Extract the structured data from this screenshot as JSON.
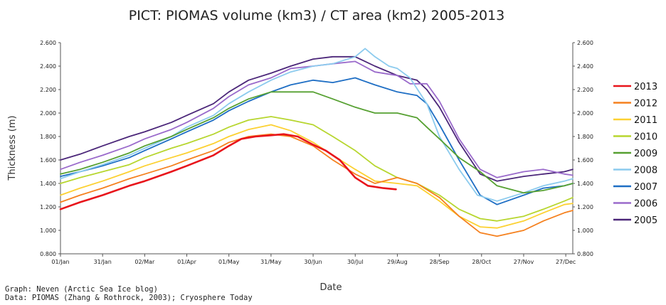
{
  "chart_data": {
    "type": "line",
    "title": "PICT: PIOMAS volume (km3) / CT area (km2) 2005-2013",
    "xlabel": "Date",
    "ylabel": "Thickness (m)",
    "ylim": [
      0.8,
      2.6
    ],
    "y_ticks": [
      "0.800",
      "1.000",
      "1.200",
      "1.400",
      "1.600",
      "1.800",
      "2.000",
      "2.200",
      "2.400",
      "2.600"
    ],
    "x_tick_labels": [
      "01/Jan",
      "31/Jan",
      "02/Mar",
      "01/Apr",
      "01/May",
      "31/May",
      "30/Jun",
      "30/Jul",
      "29/Aug",
      "28/Sep",
      "28/Oct",
      "27/Nov",
      "27/Dec"
    ],
    "x_ticks_day": [
      1,
      31,
      61,
      91,
      121,
      151,
      181,
      211,
      241,
      271,
      301,
      331,
      361
    ],
    "xlim": [
      1,
      366
    ],
    "grid": false,
    "legend_position": "right",
    "credits": [
      "Graph: Neven (Arctic Sea Ice blog)",
      "Data: PIOMAS (Zhang & Rothrock, 2003); Cryosphere Today"
    ],
    "series": [
      {
        "name": "2013",
        "color": "#e8141b",
        "width": 2.6,
        "x": [
          1,
          15,
          31,
          50,
          61,
          80,
          91,
          110,
          121,
          130,
          140,
          151,
          160,
          170,
          181,
          190,
          200,
          211,
          220,
          231,
          240
        ],
        "y": [
          1.18,
          1.24,
          1.3,
          1.38,
          1.42,
          1.5,
          1.55,
          1.64,
          1.72,
          1.78,
          1.8,
          1.81,
          1.82,
          1.8,
          1.73,
          1.68,
          1.6,
          1.45,
          1.38,
          1.36,
          1.35
        ]
      },
      {
        "name": "2012",
        "color": "#f5811f",
        "width": 1.8,
        "x": [
          1,
          15,
          31,
          50,
          61,
          80,
          91,
          110,
          121,
          135,
          151,
          165,
          181,
          195,
          211,
          225,
          241,
          255,
          271,
          285,
          300,
          312,
          331,
          345,
          360,
          366
        ],
        "y": [
          1.24,
          1.3,
          1.36,
          1.44,
          1.48,
          1.55,
          1.6,
          1.68,
          1.75,
          1.8,
          1.82,
          1.8,
          1.72,
          1.6,
          1.48,
          1.4,
          1.45,
          1.4,
          1.28,
          1.12,
          0.98,
          0.95,
          1.0,
          1.08,
          1.15,
          1.17
        ]
      },
      {
        "name": "2011",
        "color": "#fcd132",
        "width": 1.8,
        "x": [
          1,
          15,
          31,
          50,
          61,
          80,
          91,
          110,
          121,
          135,
          151,
          165,
          181,
          195,
          211,
          225,
          241,
          255,
          271,
          285,
          300,
          312,
          331,
          345,
          360,
          366
        ],
        "y": [
          1.3,
          1.36,
          1.42,
          1.5,
          1.55,
          1.62,
          1.66,
          1.74,
          1.8,
          1.86,
          1.9,
          1.85,
          1.75,
          1.64,
          1.52,
          1.42,
          1.4,
          1.38,
          1.25,
          1.12,
          1.03,
          1.02,
          1.08,
          1.15,
          1.22,
          1.23
        ]
      },
      {
        "name": "2010",
        "color": "#b7d62f",
        "width": 1.8,
        "x": [
          1,
          15,
          31,
          50,
          61,
          80,
          91,
          110,
          121,
          135,
          151,
          165,
          181,
          195,
          211,
          225,
          241,
          255,
          271,
          285,
          300,
          312,
          331,
          345,
          360,
          366
        ],
        "y": [
          1.4,
          1.45,
          1.5,
          1.56,
          1.62,
          1.7,
          1.74,
          1.82,
          1.88,
          1.94,
          1.97,
          1.94,
          1.9,
          1.8,
          1.68,
          1.55,
          1.45,
          1.4,
          1.3,
          1.18,
          1.1,
          1.08,
          1.12,
          1.18,
          1.25,
          1.28
        ]
      },
      {
        "name": "2009",
        "color": "#56a031",
        "width": 1.8,
        "x": [
          1,
          15,
          31,
          50,
          61,
          80,
          91,
          110,
          121,
          135,
          151,
          165,
          181,
          195,
          211,
          225,
          241,
          255,
          262,
          271,
          285,
          300,
          312,
          331,
          345,
          360,
          366
        ],
        "y": [
          1.48,
          1.52,
          1.58,
          1.66,
          1.72,
          1.8,
          1.86,
          1.96,
          2.04,
          2.12,
          2.18,
          2.18,
          2.18,
          2.12,
          2.05,
          2.0,
          2.0,
          1.96,
          1.88,
          1.78,
          1.62,
          1.5,
          1.38,
          1.32,
          1.34,
          1.38,
          1.4
        ]
      },
      {
        "name": "2008",
        "color": "#8ccbee",
        "width": 1.8,
        "x": [
          1,
          15,
          31,
          50,
          61,
          80,
          91,
          110,
          121,
          135,
          151,
          165,
          181,
          195,
          211,
          218,
          225,
          235,
          241,
          250,
          262,
          271,
          285,
          298,
          312,
          331,
          345,
          360,
          366
        ],
        "y": [
          1.44,
          1.5,
          1.56,
          1.64,
          1.7,
          1.8,
          1.88,
          1.98,
          2.08,
          2.18,
          2.28,
          2.35,
          2.4,
          2.42,
          2.48,
          2.55,
          2.48,
          2.4,
          2.38,
          2.3,
          2.08,
          1.8,
          1.52,
          1.3,
          1.25,
          1.32,
          1.38,
          1.42,
          1.44
        ]
      },
      {
        "name": "2007",
        "color": "#1e6ec4",
        "width": 1.8,
        "x": [
          1,
          15,
          31,
          50,
          61,
          80,
          91,
          110,
          121,
          135,
          151,
          165,
          181,
          195,
          211,
          225,
          241,
          255,
          262,
          271,
          285,
          300,
          312,
          331,
          345,
          360,
          366
        ],
        "y": [
          1.46,
          1.5,
          1.55,
          1.62,
          1.68,
          1.78,
          1.84,
          1.94,
          2.02,
          2.1,
          2.18,
          2.24,
          2.28,
          2.26,
          2.3,
          2.24,
          2.18,
          2.15,
          2.08,
          1.9,
          1.6,
          1.3,
          1.22,
          1.3,
          1.36,
          1.38,
          1.4
        ]
      },
      {
        "name": "2006",
        "color": "#9a6acb",
        "width": 1.8,
        "x": [
          1,
          15,
          31,
          50,
          61,
          80,
          91,
          110,
          121,
          135,
          151,
          165,
          181,
          195,
          211,
          225,
          241,
          250,
          262,
          271,
          285,
          300,
          312,
          331,
          345,
          360,
          366
        ],
        "y": [
          1.52,
          1.58,
          1.64,
          1.72,
          1.78,
          1.86,
          1.92,
          2.04,
          2.14,
          2.24,
          2.3,
          2.38,
          2.4,
          2.42,
          2.44,
          2.35,
          2.32,
          2.25,
          2.25,
          2.1,
          1.78,
          1.52,
          1.45,
          1.5,
          1.52,
          1.48,
          1.47
        ]
      },
      {
        "name": "2005",
        "color": "#4b2679",
        "width": 1.8,
        "x": [
          1,
          15,
          31,
          50,
          61,
          80,
          91,
          110,
          121,
          135,
          151,
          165,
          181,
          195,
          211,
          225,
          241,
          255,
          262,
          271,
          285,
          300,
          312,
          331,
          345,
          360,
          366
        ],
        "y": [
          1.6,
          1.65,
          1.72,
          1.8,
          1.84,
          1.92,
          1.98,
          2.08,
          2.18,
          2.28,
          2.34,
          2.4,
          2.46,
          2.48,
          2.48,
          2.4,
          2.32,
          2.28,
          2.2,
          2.05,
          1.75,
          1.48,
          1.42,
          1.46,
          1.48,
          1.5,
          1.52
        ]
      }
    ]
  }
}
